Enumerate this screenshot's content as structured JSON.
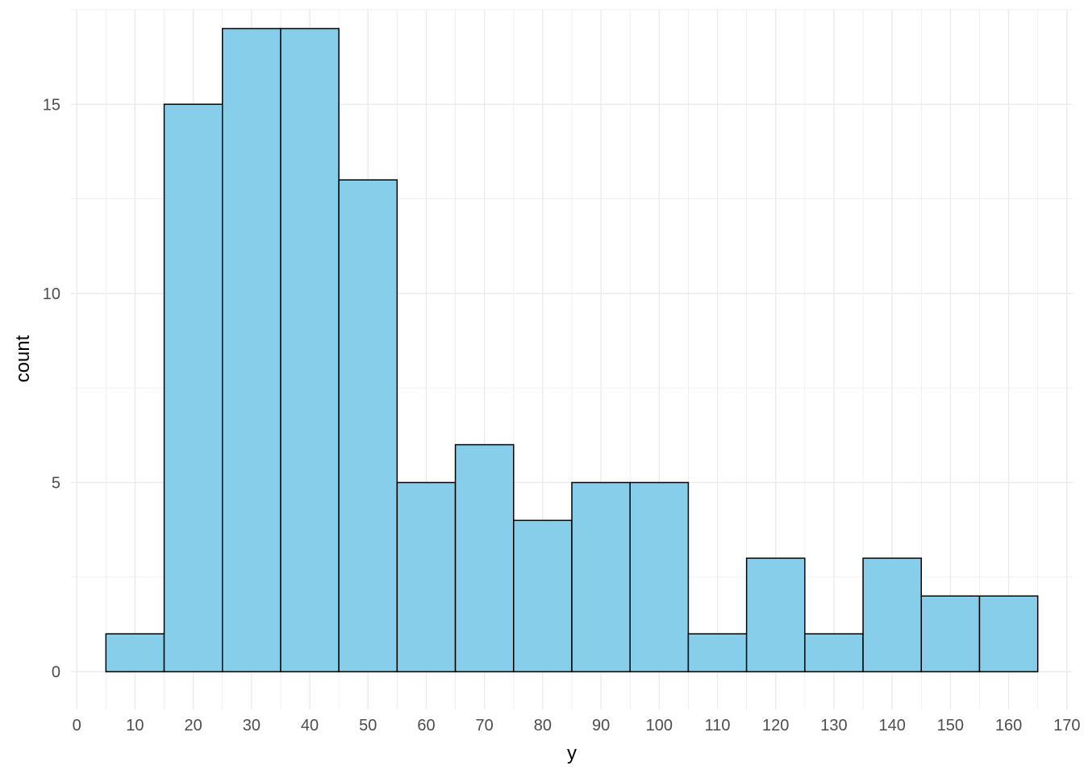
{
  "chart_data": {
    "type": "bar",
    "subtype": "histogram",
    "xlabel": "y",
    "ylabel": "count",
    "binwidth": 10,
    "bins": [
      {
        "xmin": 5,
        "xmax": 15,
        "count": 1
      },
      {
        "xmin": 15,
        "xmax": 25,
        "count": 15
      },
      {
        "xmin": 25,
        "xmax": 35,
        "count": 17
      },
      {
        "xmin": 35,
        "xmax": 45,
        "count": 17
      },
      {
        "xmin": 45,
        "xmax": 55,
        "count": 13
      },
      {
        "xmin": 55,
        "xmax": 65,
        "count": 5
      },
      {
        "xmin": 65,
        "xmax": 75,
        "count": 6
      },
      {
        "xmin": 75,
        "xmax": 85,
        "count": 4
      },
      {
        "xmin": 85,
        "xmax": 95,
        "count": 5
      },
      {
        "xmin": 95,
        "xmax": 105,
        "count": 5
      },
      {
        "xmin": 105,
        "xmax": 115,
        "count": 1
      },
      {
        "xmin": 115,
        "xmax": 125,
        "count": 3
      },
      {
        "xmin": 125,
        "xmax": 135,
        "count": 1
      },
      {
        "xmin": 135,
        "xmax": 145,
        "count": 3
      },
      {
        "xmin": 145,
        "xmax": 155,
        "count": 2
      },
      {
        "xmin": 155,
        "xmax": 165,
        "count": 2
      }
    ],
    "xlim": [
      -1,
      171
    ],
    "ylim": [
      -1,
      17.5
    ],
    "xticks": [
      0,
      10,
      20,
      30,
      40,
      50,
      60,
      70,
      80,
      90,
      100,
      110,
      120,
      130,
      140,
      150,
      160,
      170
    ],
    "yticks": [
      0,
      5,
      10,
      15
    ],
    "grid": true,
    "legend": "none",
    "colors": {
      "bar_fill": "#87CEEB",
      "bar_outline": "#000000",
      "grid": "#ebebeb",
      "tick_text": "#4d4d4d"
    }
  }
}
